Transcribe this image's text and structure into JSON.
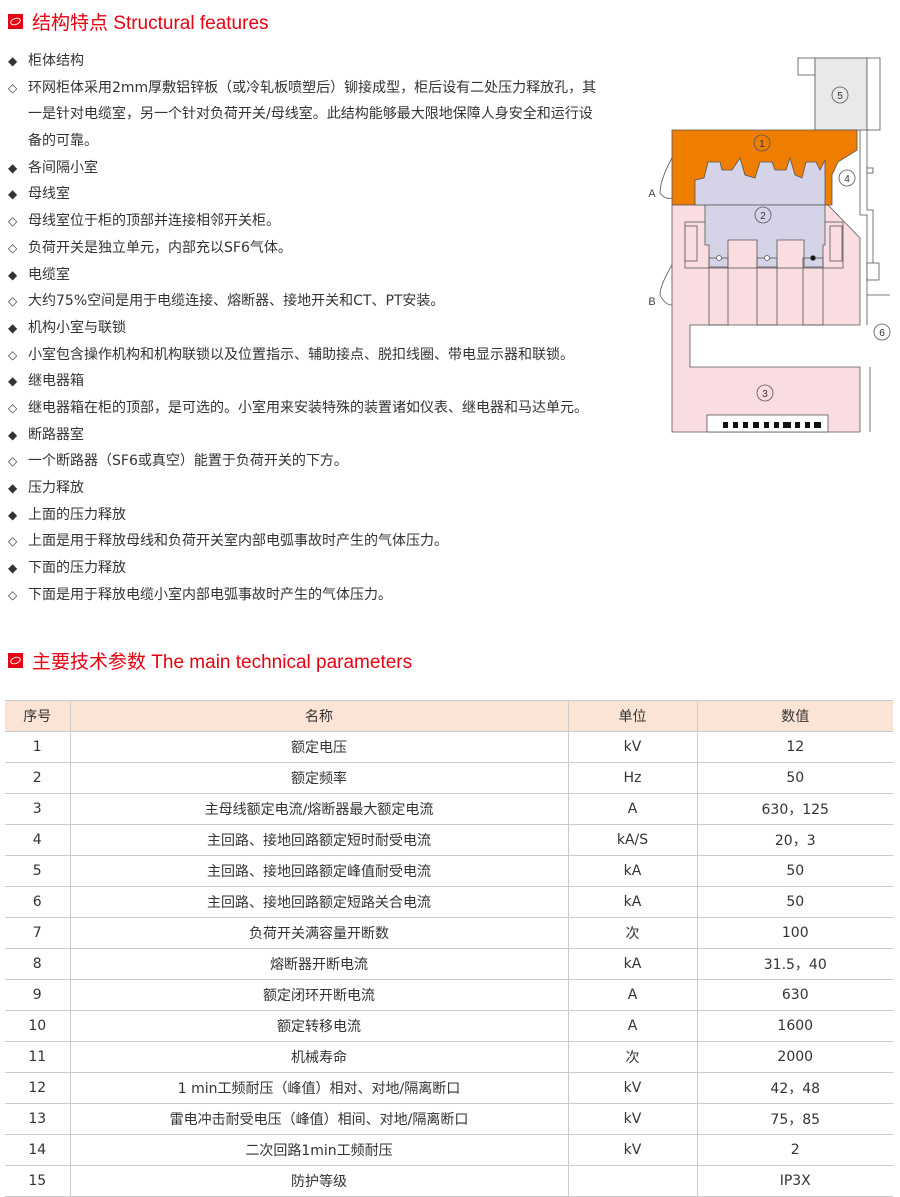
{
  "section1": {
    "title": "结构特点 Structural features",
    "icon": "section-marker-icon"
  },
  "features": [
    {
      "type": "heading",
      "text": "柜体结构"
    },
    {
      "type": "item",
      "text": "环网柜体采用2mm厚敷铝锌板（或冷轧板喷塑后）铆接成型，柜后设有二处压力释放孔，其"
    },
    {
      "type": "cont",
      "text": "一是针对电缆室，另一个针对负荷开关/母线室。此结构能够最大限地保障人身安全和运行设"
    },
    {
      "type": "cont",
      "text": "备的可靠。"
    },
    {
      "type": "heading",
      "text": "各间隔小室"
    },
    {
      "type": "heading",
      "text": "母线室"
    },
    {
      "type": "item",
      "text": "母线室位于柜的顶部并连接相邻开关柜。"
    },
    {
      "type": "item",
      "text": "负荷开关是独立单元，内部充以SF6气体。"
    },
    {
      "type": "heading",
      "text": "电缆室"
    },
    {
      "type": "item",
      "text": "大约75%空间是用于电缆连接、熔断器、接地开关和CT、PT安装。"
    },
    {
      "type": "heading",
      "text": "机构小室与联锁"
    },
    {
      "type": "item",
      "text": "小室包含操作机构和机构联锁以及位置指示、辅助接点、脱扣线圈、带电显示器和联锁。"
    },
    {
      "type": "heading",
      "text": "继电器箱"
    },
    {
      "type": "item",
      "text": "继电器箱在柜的顶部，是可选的。小室用来安装特殊的装置诸如仪表、继电器和马达单元。"
    },
    {
      "type": "heading",
      "text": "断路器室"
    },
    {
      "type": "item",
      "text": "一个断路器（SF6或真空）能置于负荷开关的下方。"
    },
    {
      "type": "heading",
      "text": "压力释放"
    },
    {
      "type": "heading",
      "text": "上面的压力释放"
    },
    {
      "type": "item",
      "text": "上面是用于释放母线和负荷开关室内部电弧事故时产生的气体压力。"
    },
    {
      "type": "heading",
      "text": "下面的压力释放"
    },
    {
      "type": "item",
      "text": "下面是用于释放电缆小室内部电弧事故时产生的气体压力。"
    }
  ],
  "bullets": {
    "heading": "◆",
    "item": "◇"
  },
  "diagram": {
    "labels": [
      "1",
      "2",
      "3",
      "4",
      "5",
      "6"
    ],
    "side_labels": [
      "A",
      "B"
    ],
    "colors": {
      "busbar": "#ef7d00",
      "cable": "#f9dde0",
      "switch": "#d5d3e8",
      "relay": "#e8e9e8"
    }
  },
  "section2": {
    "title": "主要技术参数 The main technical parameters"
  },
  "table": {
    "headers": [
      "序号",
      "名称",
      "单位",
      "数值"
    ],
    "rows": [
      [
        "1",
        "额定电压",
        "kV",
        "12"
      ],
      [
        "2",
        "额定频率",
        "Hz",
        "50"
      ],
      [
        "3",
        "主母线额定电流/熔断器最大额定电流",
        "A",
        "630，125"
      ],
      [
        "4",
        "主回路、接地回路额定短时耐受电流",
        "kA/S",
        "20，3"
      ],
      [
        "5",
        "主回路、接地回路额定峰值耐受电流",
        "kA",
        "50"
      ],
      [
        "6",
        "主回路、接地回路额定短路关合电流",
        "kA",
        "50"
      ],
      [
        "7",
        "负荷开关满容量开断数",
        "次",
        "100"
      ],
      [
        "8",
        "熔断器开断电流",
        "kA",
        "31.5，40"
      ],
      [
        "9",
        "额定闭环开断电流",
        "A",
        "630"
      ],
      [
        "10",
        "额定转移电流",
        "A",
        "1600"
      ],
      [
        "11",
        "机械寿命",
        "次",
        "2000"
      ],
      [
        "12",
        "1 min工频耐压（峰值）相对、对地/隔离断口",
        "kV",
        "42，48"
      ],
      [
        "13",
        "雷电冲击耐受电压（峰值）相间、对地/隔离断口",
        "kV",
        "75，85"
      ],
      [
        "14",
        "二次回路1min工频耐压",
        "kV",
        "2"
      ],
      [
        "15",
        "防护等级",
        "",
        "IP3X"
      ]
    ]
  },
  "colors": {
    "accent": "#e60012",
    "header_bg": "#fbe4d5"
  }
}
